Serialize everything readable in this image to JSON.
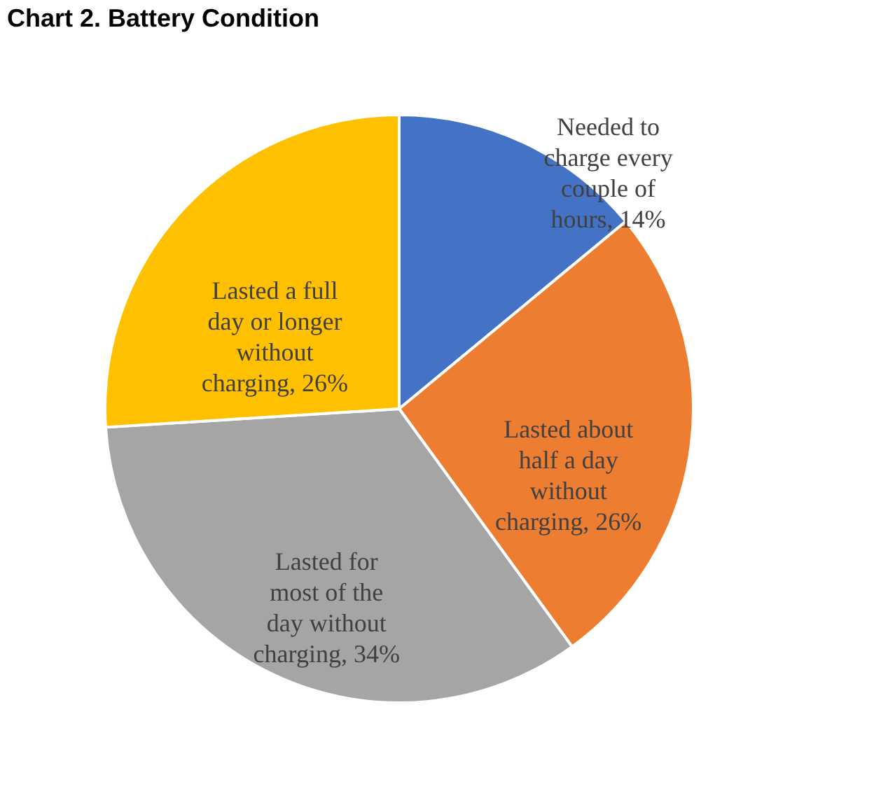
{
  "chart_data": {
    "type": "pie",
    "title": "Chart 2. Battery Condition",
    "categories": [
      "Needed to charge every couple of hours",
      "Lasted about half a day without charging",
      "Lasted for most of the day without charging",
      "Lasted a full day or longer without charging"
    ],
    "value_labels": [
      "14%",
      "26%",
      "34%",
      "26%"
    ],
    "values": [
      14,
      26,
      34,
      26
    ],
    "colors": [
      "#4472c4",
      "#ed7d31",
      "#a5a5a5",
      "#ffc000"
    ],
    "legend": false
  }
}
